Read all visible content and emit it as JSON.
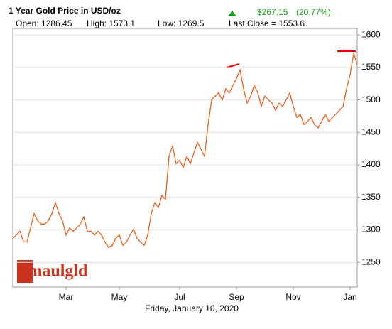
{
  "header": {
    "title": "1 Year Gold Price in USD/oz",
    "change": "$267.15",
    "change_pct": "(20.77%)",
    "open": "Open: 1286.45",
    "high": "High: 1573.1",
    "low": "Low: 1269.5",
    "last_close": "Last Close = 1553.6"
  },
  "logo": "Smaulgld",
  "chart_data": {
    "type": "line",
    "xlabel": "Friday, January 10, 2020",
    "color": "#e8601c",
    "grid": true,
    "ylim": [
      1212,
      1610
    ],
    "yticks": [
      1250,
      1300,
      1350,
      1400,
      1450,
      1500,
      1550,
      1600
    ],
    "categories": [
      null,
      null,
      null,
      null,
      null,
      null,
      null,
      null,
      null,
      null,
      null,
      null,
      null,
      null,
      null,
      "Mar",
      null,
      null,
      null,
      null,
      null,
      null,
      null,
      null,
      null,
      null,
      null,
      null,
      null,
      null,
      "May",
      null,
      null,
      null,
      null,
      null,
      null,
      null,
      null,
      null,
      null,
      null,
      null,
      null,
      null,
      null,
      null,
      "Jul",
      null,
      null,
      null,
      null,
      null,
      null,
      null,
      null,
      null,
      null,
      null,
      null,
      null,
      null,
      null,
      "Sep",
      null,
      null,
      null,
      null,
      null,
      null,
      null,
      null,
      null,
      null,
      null,
      null,
      null,
      null,
      null,
      "Nov",
      null,
      null,
      null,
      null,
      null,
      null,
      null,
      null,
      null,
      null,
      null,
      null,
      null,
      null,
      null,
      "Jan",
      null,
      null
    ],
    "values": [
      1287,
      1292,
      1298,
      1282,
      1281,
      1303,
      1325,
      1314,
      1309,
      1309,
      1314,
      1325,
      1342,
      1325,
      1314,
      1292,
      1303,
      1298,
      1303,
      1309,
      1320,
      1298,
      1298,
      1292,
      1298,
      1292,
      1281,
      1273,
      1276,
      1287,
      1292,
      1276,
      1281,
      1292,
      1301,
      1287,
      1281,
      1276,
      1292,
      1325,
      1342,
      1334,
      1353,
      1347,
      1413,
      1429,
      1402,
      1407,
      1396,
      1413,
      1402,
      1418,
      1435,
      1424,
      1413,
      1462,
      1500,
      1506,
      1511,
      1500,
      1517,
      1511,
      1522,
      1533,
      1546,
      1517,
      1495,
      1506,
      1522,
      1511,
      1490,
      1506,
      1500,
      1495,
      1484,
      1495,
      1490,
      1500,
      1511,
      1490,
      1473,
      1478,
      1462,
      1467,
      1473,
      1462,
      1457,
      1467,
      1478,
      1467,
      1473,
      1478,
      1484,
      1490,
      1517,
      1539,
      1572,
      1554
    ]
  }
}
